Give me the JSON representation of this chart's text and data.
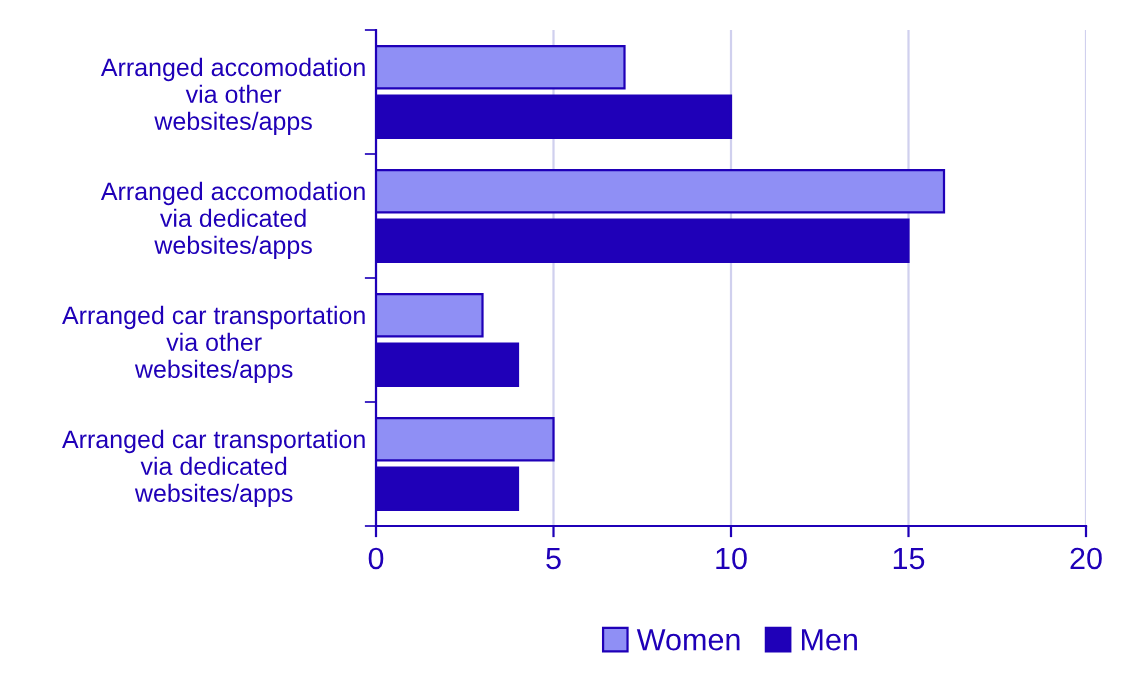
{
  "chart_data": {
    "type": "bar",
    "orientation": "horizontal",
    "categories": [
      "Arranged accomodation\nvia other\nwebsites/apps",
      "Arranged accomodation\nvia dedicated\nwebsites/apps",
      "Arranged car transportation\nvia other\nwebsites/apps",
      "Arranged car transportation\nvia dedicated\nwebsites/apps"
    ],
    "series": [
      {
        "name": "Women",
        "color": "#8f8ff5",
        "values": [
          7,
          16,
          3,
          5
        ]
      },
      {
        "name": "Men",
        "color": "#1f00b8",
        "values": [
          10,
          15,
          4,
          4
        ]
      }
    ],
    "xlim": [
      0,
      20
    ],
    "xticks": [
      0,
      5,
      10,
      15,
      20
    ],
    "grid": "x",
    "legend": "bottom"
  }
}
